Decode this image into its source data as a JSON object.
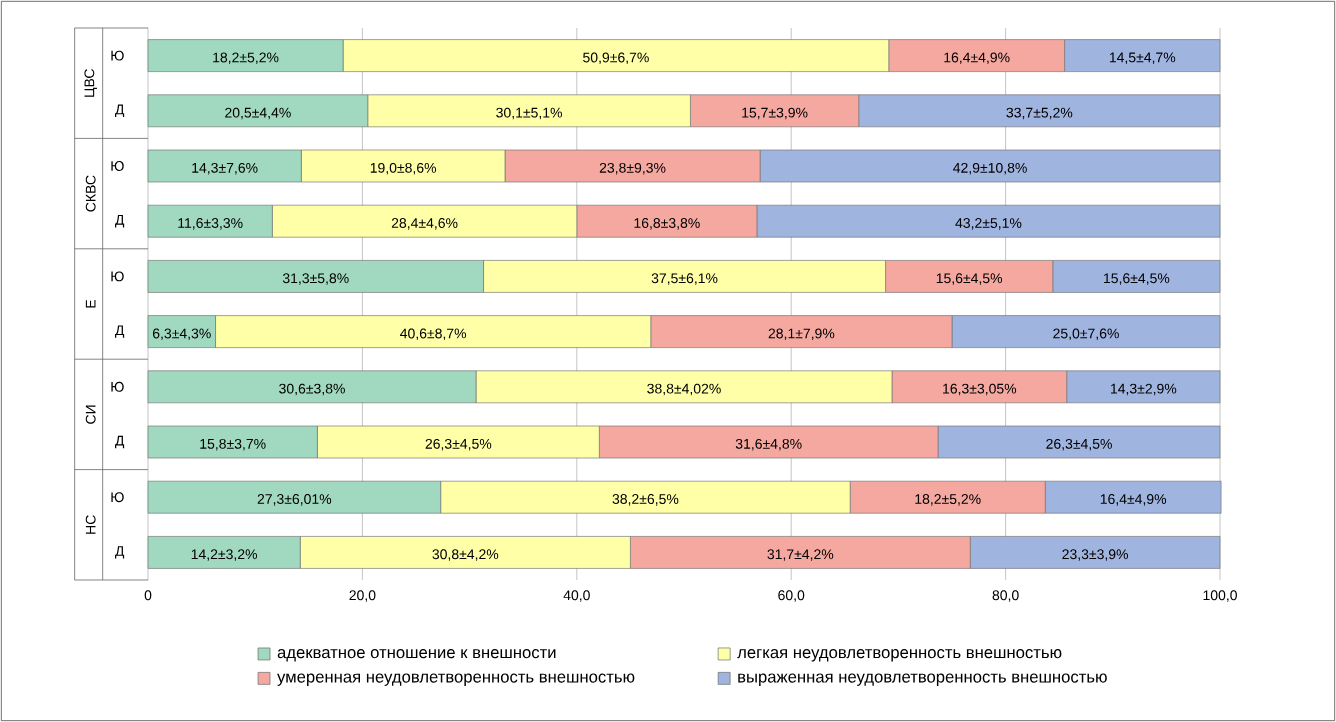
{
  "chart_data": {
    "type": "bar",
    "orientation": "horizontal",
    "stacked": true,
    "categories": [
      "Ю",
      "Д",
      "Ю",
      "Д",
      "Ю",
      "Д",
      "Ю",
      "Д",
      "Ю",
      "Д"
    ],
    "series": [
      {
        "name": "адекватное отношение к внешности",
        "color": "#a0d8c0",
        "values": [
          18.2,
          20.5,
          14.3,
          11.6,
          31.3,
          6.3,
          30.6,
          15.8,
          27.3,
          14.2
        ],
        "value_labels": [
          "18,2±5,2%",
          "20,5±4,4%",
          "14,3±7,6%",
          "11,6±3,3%",
          "31,3±5,8%",
          "6,3±4,3%",
          "30,6±3,8%",
          "15,8±3,7%",
          "27,3±6,01%",
          "14,2±3,2%"
        ]
      },
      {
        "name": "легкая неудовлетворенность внешностью",
        "color": "#ffffa8",
        "values": [
          50.9,
          30.1,
          19.0,
          28.4,
          37.5,
          40.6,
          38.8,
          26.3,
          38.2,
          30.8
        ],
        "value_labels": [
          "50,9±6,7%",
          "30,1±5,1%",
          "19,0±8,6%",
          "28,4±4,6%",
          "37,5±6,1%",
          "40,6±8,7%",
          "38,8±4,02%",
          "26,3±4,5%",
          "38,2±6,5%",
          "30,8±4,2%"
        ]
      },
      {
        "name": "умеренная неудовлетворенность внешностью",
        "color": "#f4a8a0",
        "values": [
          16.4,
          15.7,
          23.8,
          16.8,
          15.6,
          28.1,
          16.3,
          31.6,
          18.2,
          31.7
        ],
        "value_labels": [
          "16,4±4,9%",
          "15,7±3,9%",
          "23,8±9,3%",
          "16,8±3,8%",
          "15,6±4,5%",
          "28,1±7,9%",
          "16,3±3,05%",
          "31,6±4,8%",
          "18,2±5,2%",
          "31,7±4,2%"
        ]
      },
      {
        "name": "выраженная неудовлетворенность внешностью",
        "color": "#a0b4e0",
        "values": [
          14.5,
          33.7,
          42.9,
          43.2,
          15.6,
          25.0,
          14.3,
          26.3,
          16.4,
          23.3
        ],
        "value_labels": [
          "14,5±4,7%",
          "33,7±5,2%",
          "42,9±10,8%",
          "43,2±5,1%",
          "15,6±4,5%",
          "25,0±7,6%",
          "14,3±2,9%",
          "26,3±4,5%",
          "16,4±4,9%",
          "23,3±3,9%"
        ]
      }
    ],
    "xlim": [
      0,
      100
    ],
    "xticks": [
      0,
      {
        "value": 20,
        "label": "20,0"
      },
      {
        "value": 40,
        "label": "40,0"
      },
      {
        "value": 60,
        "label": "60,0"
      },
      {
        "value": 80,
        "label": "80,0"
      },
      {
        "value": 100,
        "label": "100,0"
      }
    ],
    "annotations": [
      "ЦВС",
      "СКВС",
      "Е",
      "СИ",
      "НС"
    ],
    "grid": "x",
    "legend": "bottom"
  }
}
